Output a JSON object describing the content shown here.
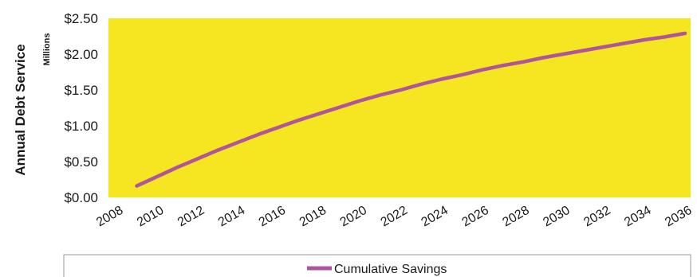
{
  "chart_data": {
    "type": "line",
    "ylabel": "Annual Debt Service",
    "y_unit_label": "Millions",
    "y_tick_labels": [
      "$0.00",
      "$0.50",
      "$1.00",
      "$1.50",
      "$2.00",
      "$2.50"
    ],
    "y_ticks": [
      0,
      0.5,
      1.0,
      1.5,
      2.0,
      2.5
    ],
    "ylim": [
      0,
      2.5
    ],
    "x_tick_labels": [
      "2008",
      "2010",
      "2012",
      "2014",
      "2016",
      "2018",
      "2020",
      "2022",
      "2024",
      "2026",
      "2028",
      "2030",
      "2032",
      "2034",
      "2036"
    ],
    "xlim": [
      2008,
      2036
    ],
    "x": [
      2009,
      2010,
      2011,
      2012,
      2013,
      2014,
      2015,
      2016,
      2017,
      2018,
      2019,
      2020,
      2021,
      2022,
      2023,
      2024,
      2025,
      2026,
      2027,
      2028,
      2029,
      2030,
      2031,
      2032,
      2033,
      2034,
      2035,
      2036
    ],
    "series": [
      {
        "name": "Cumulative Savings",
        "color": "#b0549b",
        "values": [
          0.16,
          0.29,
          0.42,
          0.54,
          0.66,
          0.77,
          0.88,
          0.98,
          1.08,
          1.17,
          1.26,
          1.35,
          1.43,
          1.5,
          1.58,
          1.65,
          1.71,
          1.78,
          1.84,
          1.89,
          1.95,
          2.0,
          2.05,
          2.1,
          2.15,
          2.2,
          2.24,
          2.29
        ]
      }
    ],
    "plot_background": "#f5e621",
    "grid": false,
    "legend": "bottom"
  }
}
